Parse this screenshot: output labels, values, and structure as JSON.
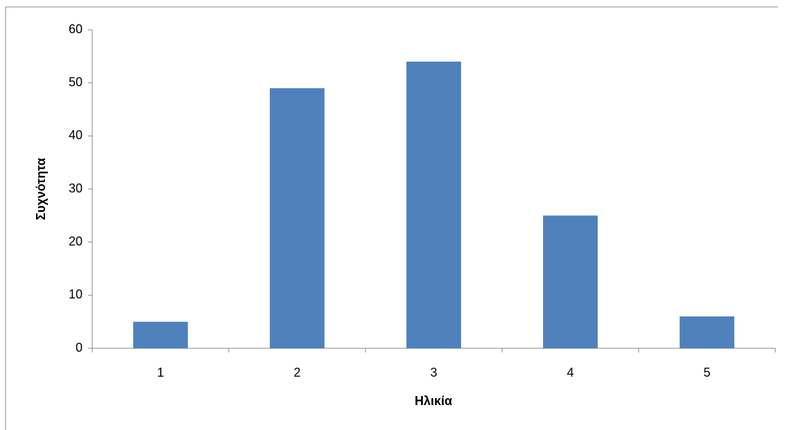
{
  "chart_data": {
    "type": "bar",
    "x_label": "Ηλικία",
    "y_label": "Συχνότητα",
    "categories": [
      "1",
      "2",
      "3",
      "4",
      "5"
    ],
    "values": [
      5,
      49,
      54,
      25,
      6
    ],
    "color": "#4f81bd",
    "ylim": [
      0,
      60
    ],
    "yticks": [
      0,
      10,
      20,
      30,
      40,
      50,
      60
    ],
    "grid": false
  }
}
